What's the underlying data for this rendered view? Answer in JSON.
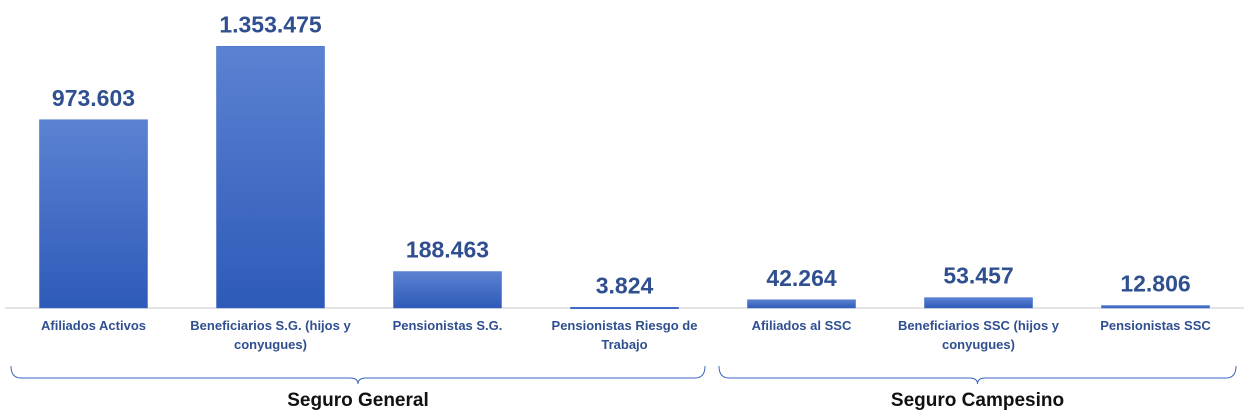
{
  "chart_data": {
    "type": "bar",
    "groups": [
      {
        "name": "Seguro General",
        "categories": [
          "Afiliados Activos",
          "Beneficiarios S.G. (hijos y conyugues)",
          "Pensionistas S.G.",
          "Pensionistas Riesgo de Trabajo"
        ],
        "values": [
          973603,
          1353475,
          188463,
          3824
        ],
        "value_labels": [
          "973.603",
          "1.353.475",
          "188.463",
          "3.824"
        ]
      },
      {
        "name": "Seguro Campesino",
        "categories": [
          "Afiliados al SSC",
          "Beneficiarios SSC (hijos y conyugues)",
          "Pensionistas SSC"
        ],
        "values": [
          42264,
          53457,
          12806
        ],
        "value_labels": [
          "42.264",
          "53.457",
          "12.806"
        ]
      }
    ],
    "color": "#3a66c4",
    "ylim": [
      0,
      1500000
    ]
  }
}
